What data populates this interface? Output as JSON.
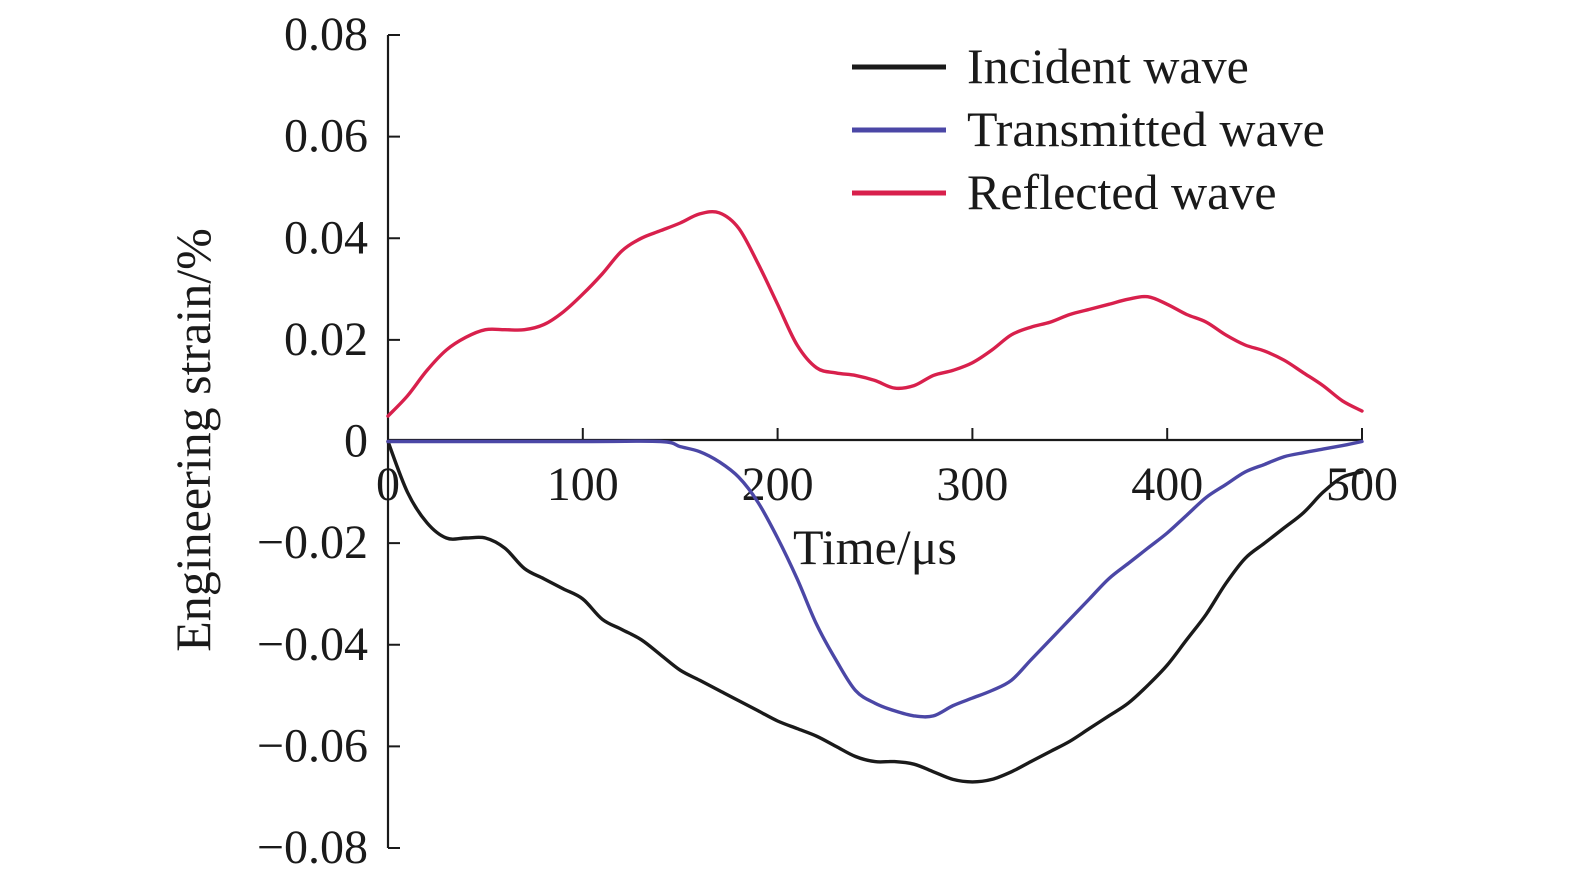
{
  "chart_data": {
    "type": "line",
    "title": "",
    "xlabel": "Time/μs",
    "ylabel": "Engineering strain/%",
    "xlim": [
      0,
      500
    ],
    "ylim": [
      -0.08,
      0.08
    ],
    "x_ticks": [
      0,
      100,
      200,
      300,
      400,
      500
    ],
    "x_tick_labels": [
      "0",
      "100",
      "200",
      "300",
      "400",
      "500"
    ],
    "y_ticks": [
      0.08,
      0.06,
      0.04,
      0.02,
      0,
      -0.02,
      -0.04,
      -0.06,
      -0.08
    ],
    "y_tick_labels": [
      "0.08",
      "0.06",
      "0.04",
      "0.02",
      "0",
      "−0.02",
      "−0.04",
      "−0.06",
      "−0.08"
    ],
    "grid": false,
    "legend_position": "top-right",
    "series": [
      {
        "name": "Incident wave",
        "color": "#1a1a1a",
        "x": [
          0,
          10,
          20,
          30,
          40,
          50,
          60,
          70,
          80,
          90,
          100,
          110,
          120,
          130,
          140,
          150,
          160,
          170,
          180,
          190,
          200,
          210,
          220,
          230,
          240,
          250,
          260,
          270,
          280,
          290,
          300,
          310,
          320,
          330,
          340,
          350,
          360,
          370,
          380,
          390,
          400,
          410,
          420,
          430,
          440,
          450,
          460,
          470,
          480,
          490,
          500
        ],
        "y": [
          0,
          -0.01,
          -0.016,
          -0.019,
          -0.019,
          -0.019,
          -0.021,
          -0.025,
          -0.027,
          -0.029,
          -0.031,
          -0.035,
          -0.037,
          -0.039,
          -0.042,
          -0.045,
          -0.047,
          -0.049,
          -0.051,
          -0.053,
          -0.055,
          -0.0565,
          -0.058,
          -0.06,
          -0.062,
          -0.063,
          -0.063,
          -0.0635,
          -0.065,
          -0.0665,
          -0.067,
          -0.0665,
          -0.065,
          -0.063,
          -0.061,
          -0.059,
          -0.0565,
          -0.054,
          -0.0515,
          -0.048,
          -0.044,
          -0.039,
          -0.034,
          -0.028,
          -0.023,
          -0.02,
          -0.017,
          -0.014,
          -0.01,
          -0.007,
          -0.006
        ]
      },
      {
        "name": "Transmitted wave",
        "color": "#4b47a6",
        "x": [
          0,
          100,
          140,
          150,
          160,
          170,
          180,
          190,
          200,
          210,
          220,
          230,
          240,
          250,
          260,
          270,
          280,
          290,
          300,
          310,
          320,
          330,
          340,
          350,
          360,
          370,
          380,
          390,
          400,
          410,
          420,
          430,
          440,
          450,
          460,
          470,
          480,
          490,
          500
        ],
        "y": [
          0,
          0,
          0,
          -0.001,
          -0.002,
          -0.004,
          -0.007,
          -0.012,
          -0.019,
          -0.027,
          -0.036,
          -0.043,
          -0.049,
          -0.0515,
          -0.053,
          -0.054,
          -0.054,
          -0.052,
          -0.0505,
          -0.049,
          -0.047,
          -0.043,
          -0.039,
          -0.035,
          -0.031,
          -0.027,
          -0.024,
          -0.021,
          -0.018,
          -0.0145,
          -0.011,
          -0.0085,
          -0.006,
          -0.0045,
          -0.003,
          -0.0022,
          -0.0015,
          -0.0008,
          0
        ]
      },
      {
        "name": "Reflected wave",
        "color": "#d8204c",
        "x": [
          0,
          10,
          20,
          30,
          40,
          50,
          60,
          70,
          80,
          90,
          100,
          110,
          120,
          130,
          140,
          150,
          160,
          170,
          180,
          190,
          200,
          210,
          220,
          230,
          240,
          250,
          260,
          270,
          280,
          290,
          300,
          310,
          320,
          330,
          340,
          350,
          360,
          370,
          380,
          390,
          400,
          410,
          420,
          430,
          440,
          450,
          460,
          470,
          480,
          490,
          500
        ],
        "y": [
          0.005,
          0.009,
          0.014,
          0.018,
          0.0205,
          0.022,
          0.022,
          0.022,
          0.023,
          0.0255,
          0.029,
          0.033,
          0.0375,
          0.04,
          0.0415,
          0.043,
          0.0448,
          0.045,
          0.042,
          0.035,
          0.027,
          0.019,
          0.0145,
          0.0135,
          0.013,
          0.012,
          0.0105,
          0.011,
          0.013,
          0.014,
          0.0155,
          0.018,
          0.021,
          0.0225,
          0.0235,
          0.025,
          0.026,
          0.027,
          0.028,
          0.0285,
          0.027,
          0.025,
          0.0235,
          0.021,
          0.019,
          0.0178,
          0.016,
          0.0135,
          0.011,
          0.008,
          0.006
        ]
      }
    ]
  }
}
